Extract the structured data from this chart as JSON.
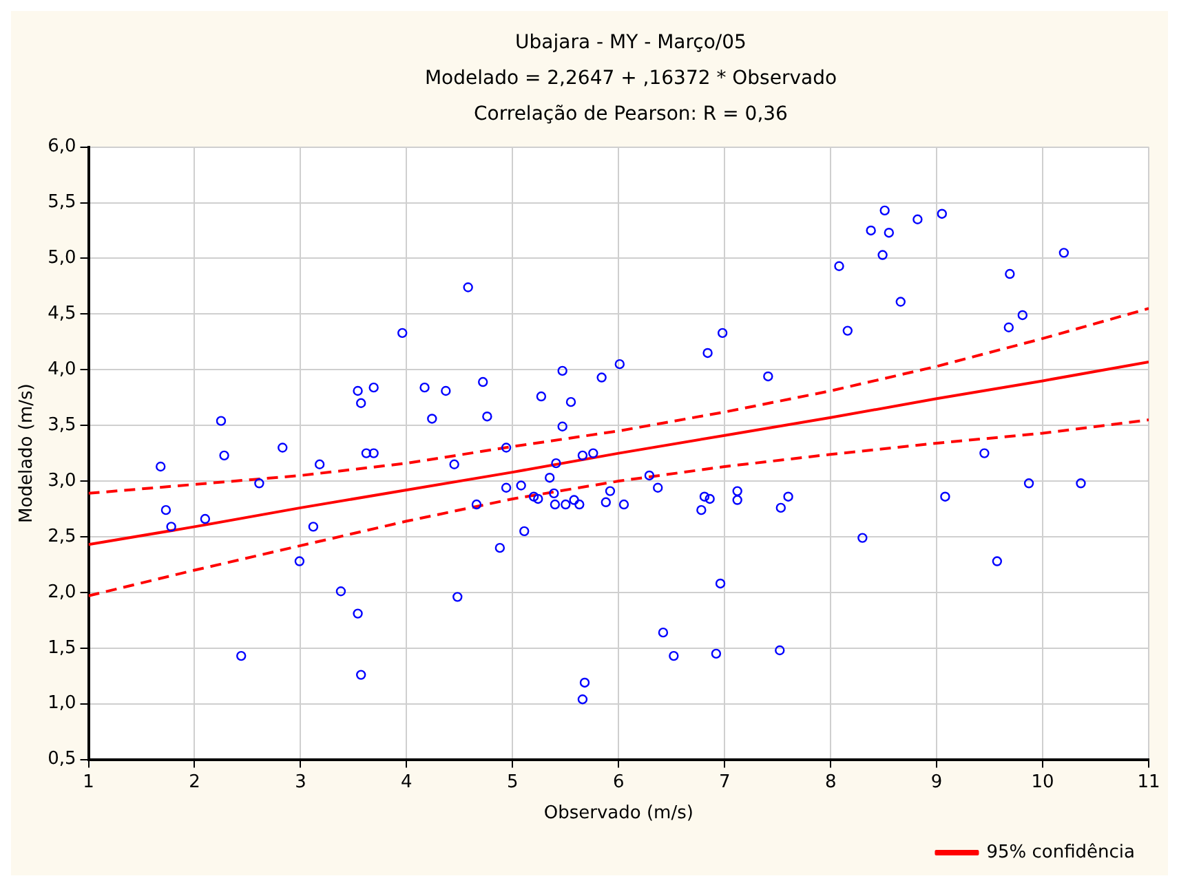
{
  "chart_data": {
    "type": "scatter",
    "title": "Ubajara - MY - Março/05",
    "subtitle": "Modelado = 2,2647 + ,16372 * Observado",
    "annotations": [
      "Correlação de Pearson: R = 0,36"
    ],
    "xlabel": "Observado (m/s)",
    "ylabel": "Modelado (m/s)",
    "xlim": [
      1,
      11
    ],
    "xticks": [
      1,
      2,
      3,
      4,
      5,
      6,
      7,
      8,
      9,
      10,
      11
    ],
    "ylim": [
      0.5,
      6
    ],
    "yticks": [
      {
        "value": 0.5,
        "label": "0,5"
      },
      {
        "value": 1,
        "label": "1,0"
      },
      {
        "value": 1.5,
        "label": "1,5"
      },
      {
        "value": 2,
        "label": "2,0"
      },
      {
        "value": 2.5,
        "label": "2,5"
      },
      {
        "value": 3,
        "label": "3,0"
      },
      {
        "value": 3.5,
        "label": "3,5"
      },
      {
        "value": 4,
        "label": "4,0"
      },
      {
        "value": 4.5,
        "label": "4,5"
      },
      {
        "value": 5,
        "label": "5,0"
      },
      {
        "value": 5.5,
        "label": "5,5"
      },
      {
        "value": 6,
        "label": "6,0"
      }
    ],
    "grid": true,
    "legend": "bottom right",
    "marker": "circle",
    "series": [
      {
        "color": "#0000ff",
        "x": [
          1.68,
          1.73,
          1.78,
          2.1,
          2.25,
          2.28,
          2.44,
          2.61,
          2.83,
          2.99,
          3.12,
          3.18,
          3.38,
          3.54,
          3.57,
          3.54,
          3.57,
          3.62,
          3.69,
          3.69,
          3.96,
          4.17,
          4.24,
          4.37,
          4.45,
          4.48,
          4.58,
          4.66,
          4.72,
          4.76,
          4.88,
          4.94,
          4.94,
          5.08,
          5.11,
          5.2,
          5.24,
          5.27,
          5.35,
          5.39,
          5.4,
          5.41,
          5.47,
          5.47,
          5.5,
          5.55,
          5.58,
          5.63,
          5.66,
          5.66,
          5.68,
          5.76,
          5.84,
          5.88,
          5.92,
          6.01,
          6.05,
          6.29,
          6.37,
          6.42,
          6.52,
          6.78,
          6.81,
          6.84,
          6.86,
          6.92,
          6.96,
          6.98,
          7.12,
          7.12,
          7.41,
          7.52,
          7.53,
          7.6,
          8.08,
          8.16,
          8.3,
          8.38,
          8.49,
          8.51,
          8.55,
          8.66,
          8.82,
          9.05,
          9.08,
          9.45,
          9.57,
          9.68,
          9.69,
          9.81,
          9.87,
          10.2,
          10.36
        ],
        "values": [
          3.13,
          2.74,
          2.59,
          2.66,
          3.54,
          3.23,
          1.43,
          2.98,
          3.3,
          2.28,
          2.59,
          3.15,
          2.01,
          3.81,
          3.7,
          1.81,
          1.26,
          3.25,
          3.25,
          3.84,
          4.33,
          3.84,
          3.56,
          3.81,
          3.15,
          1.96,
          4.74,
          2.79,
          3.89,
          3.58,
          2.4,
          3.3,
          2.94,
          2.96,
          2.55,
          2.86,
          2.84,
          3.76,
          3.03,
          2.89,
          2.79,
          3.16,
          3.99,
          3.49,
          2.79,
          3.71,
          2.83,
          2.79,
          3.23,
          1.04,
          1.19,
          3.25,
          3.93,
          2.81,
          2.91,
          4.05,
          2.79,
          3.05,
          2.94,
          1.64,
          1.43,
          2.74,
          2.86,
          4.15,
          2.84,
          1.45,
          2.08,
          4.33,
          2.91,
          2.83,
          3.94,
          1.48,
          2.76,
          2.86,
          4.93,
          4.35,
          2.49,
          5.25,
          5.03,
          5.43,
          5.23,
          4.61,
          5.35,
          5.4,
          2.86,
          3.25,
          2.28,
          4.38,
          4.86,
          4.49,
          2.98,
          5.05,
          2.98
        ]
      },
      {
        "type": "line",
        "name": "95% confidência",
        "color": "#ff0000",
        "line_style": "solid",
        "marker": "none",
        "x": [
          1,
          2,
          3,
          4,
          5,
          6,
          7,
          8,
          9,
          10,
          11
        ],
        "values": [
          2.43,
          2.59,
          2.76,
          2.92,
          3.08,
          3.25,
          3.41,
          3.57,
          3.74,
          3.9,
          4.07
        ]
      },
      {
        "type": "line",
        "color": "#ff0000",
        "line_style": "dashed",
        "marker": "none",
        "x": [
          1,
          2,
          3,
          4,
          5,
          6,
          7,
          8,
          9,
          10,
          11
        ],
        "values": [
          1.97,
          2.2,
          2.42,
          2.64,
          2.84,
          3.0,
          3.13,
          3.24,
          3.34,
          3.43,
          3.55
        ]
      },
      {
        "type": "line",
        "color": "#ff0000",
        "line_style": "dashed",
        "marker": "none",
        "x": [
          1,
          2,
          3,
          4,
          5,
          6,
          7,
          8,
          9,
          10,
          11
        ],
        "values": [
          2.89,
          2.97,
          3.05,
          3.16,
          3.31,
          3.45,
          3.62,
          3.81,
          4.03,
          4.28,
          4.55
        ]
      }
    ]
  }
}
